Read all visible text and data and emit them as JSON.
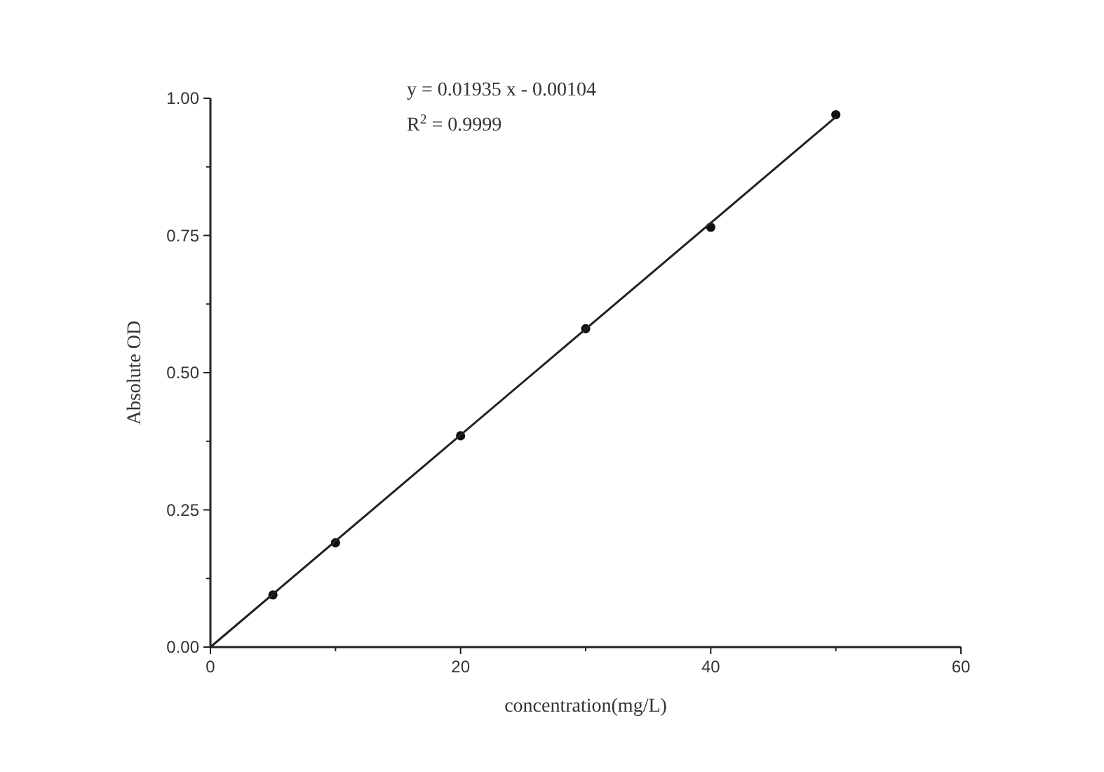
{
  "chart_data": {
    "type": "scatter",
    "xlabel": "concentration(mg/L)",
    "ylabel": "Absolute OD",
    "annotations": [
      "y = 0.01935 x - 0.00104",
      "R$^{2}$ = 0.9999"
    ],
    "xlim": [
      0,
      60
    ],
    "ylim": [
      0,
      1
    ],
    "xticks": [
      0,
      {
        "value": 10,
        "label": null
      },
      20,
      {
        "value": 30,
        "label": null
      },
      40,
      {
        "value": 50,
        "label": null
      },
      60
    ],
    "yticks": [
      {
        "value": 0,
        "label": "0.00"
      },
      {
        "value": 0.125,
        "label": null
      },
      {
        "value": 0.25,
        "label": "0.25"
      },
      {
        "value": 0.375,
        "label": null
      },
      {
        "value": 0.5,
        "label": "0.50"
      },
      {
        "value": 0.625,
        "label": null
      },
      {
        "value": 0.75,
        "label": "0.75"
      },
      {
        "value": 0.875,
        "label": null
      },
      {
        "value": 1,
        "label": "1.00"
      }
    ],
    "grid": false,
    "marker": "circle",
    "series": [
      {
        "color": "#111111",
        "x": [
          5,
          10,
          20,
          30,
          40,
          50
        ],
        "values": [
          0.095,
          0.19,
          0.385,
          0.58,
          0.765,
          0.97
        ]
      },
      {
        "type": "line",
        "color": "#222222",
        "line_style": "solid",
        "marker": "none",
        "x": [
          0,
          50
        ],
        "values": [
          0,
          0.966
        ]
      }
    ]
  }
}
